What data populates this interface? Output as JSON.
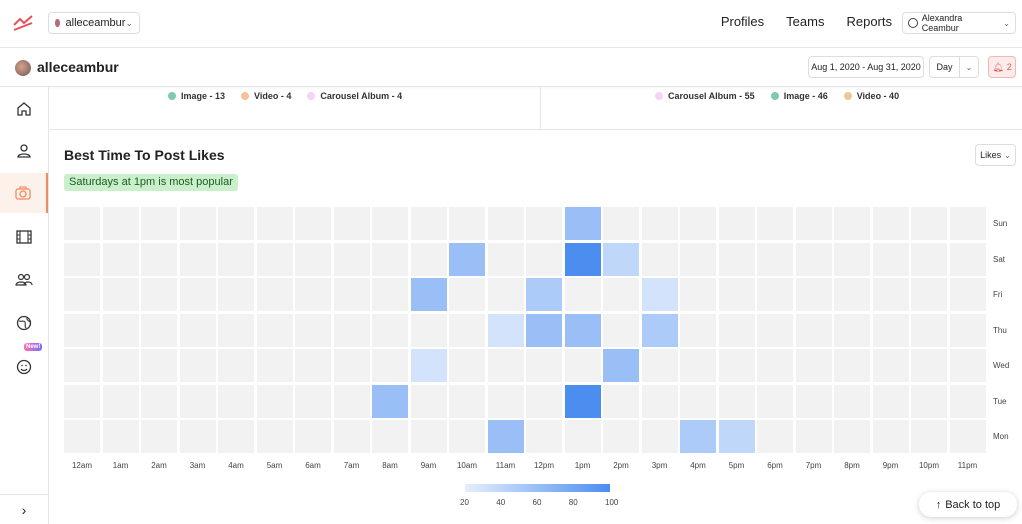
{
  "topbar": {
    "account_label": "alleceambur",
    "nav": [
      "Profiles",
      "Teams",
      "Reports"
    ],
    "user_label": "Alexandra Ceambur"
  },
  "subbar": {
    "profile_name": "alleceambur",
    "date_range": "Aug 1, 2020 - Aug 31, 2020",
    "granularity": "Day",
    "notifications": "2"
  },
  "legend_left": [
    {
      "label": "Image - 13",
      "color": "#7fc9b0"
    },
    {
      "label": "Video - 4",
      "color": "#f2c49b"
    },
    {
      "label": "Carousel Album - 4",
      "color": "#f6d4f2"
    }
  ],
  "legend_right": [
    {
      "label": "Carousel Album - 55",
      "color": "#f6d4f2"
    },
    {
      "label": "Image - 46",
      "color": "#7fc9b0"
    },
    {
      "label": "Video - 40",
      "color": "#f2c49b"
    }
  ],
  "section": {
    "title": "Best Time To Post Likes",
    "metric_select": "Likes",
    "highlight": "Saturdays at 1pm is most popular"
  },
  "chart_data": {
    "type": "heatmap",
    "x": [
      "12am",
      "1am",
      "2am",
      "3am",
      "4am",
      "5am",
      "6am",
      "7am",
      "8am",
      "9am",
      "10am",
      "11am",
      "12pm",
      "1pm",
      "2pm",
      "3pm",
      "4pm",
      "5pm",
      "6pm",
      "7pm",
      "8pm",
      "9pm",
      "10pm",
      "11pm"
    ],
    "y": [
      "Sun",
      "Sat",
      "Fri",
      "Thu",
      "Wed",
      "Tue",
      "Mon"
    ],
    "cells": [
      {
        "day": "Sun",
        "hour": "1pm",
        "value": 60
      },
      {
        "day": "Sat",
        "hour": "10am",
        "value": 60
      },
      {
        "day": "Sat",
        "hour": "1pm",
        "value": 100
      },
      {
        "day": "Sat",
        "hour": "2pm",
        "value": 40
      },
      {
        "day": "Fri",
        "hour": "9am",
        "value": 60
      },
      {
        "day": "Fri",
        "hour": "12pm",
        "value": 50
      },
      {
        "day": "Fri",
        "hour": "3pm",
        "value": 30
      },
      {
        "day": "Thu",
        "hour": "11am",
        "value": 30
      },
      {
        "day": "Thu",
        "hour": "12pm",
        "value": 60
      },
      {
        "day": "Thu",
        "hour": "1pm",
        "value": 60
      },
      {
        "day": "Thu",
        "hour": "3pm",
        "value": 50
      },
      {
        "day": "Wed",
        "hour": "9am",
        "value": 30
      },
      {
        "day": "Wed",
        "hour": "2pm",
        "value": 60
      },
      {
        "day": "Tue",
        "hour": "8am",
        "value": 60
      },
      {
        "day": "Tue",
        "hour": "1pm",
        "value": 100
      },
      {
        "day": "Mon",
        "hour": "11am",
        "value": 60
      },
      {
        "day": "Mon",
        "hour": "4pm",
        "value": 50
      },
      {
        "day": "Mon",
        "hour": "5pm",
        "value": 40
      }
    ],
    "scale_ticks": [
      20,
      40,
      60,
      80,
      100
    ],
    "range": [
      20,
      100
    ]
  },
  "colors": {
    "empty": "#f2f2f2",
    "low": "#e6effc",
    "high": "#4b8ef0"
  },
  "back_to_top": "Back to top"
}
